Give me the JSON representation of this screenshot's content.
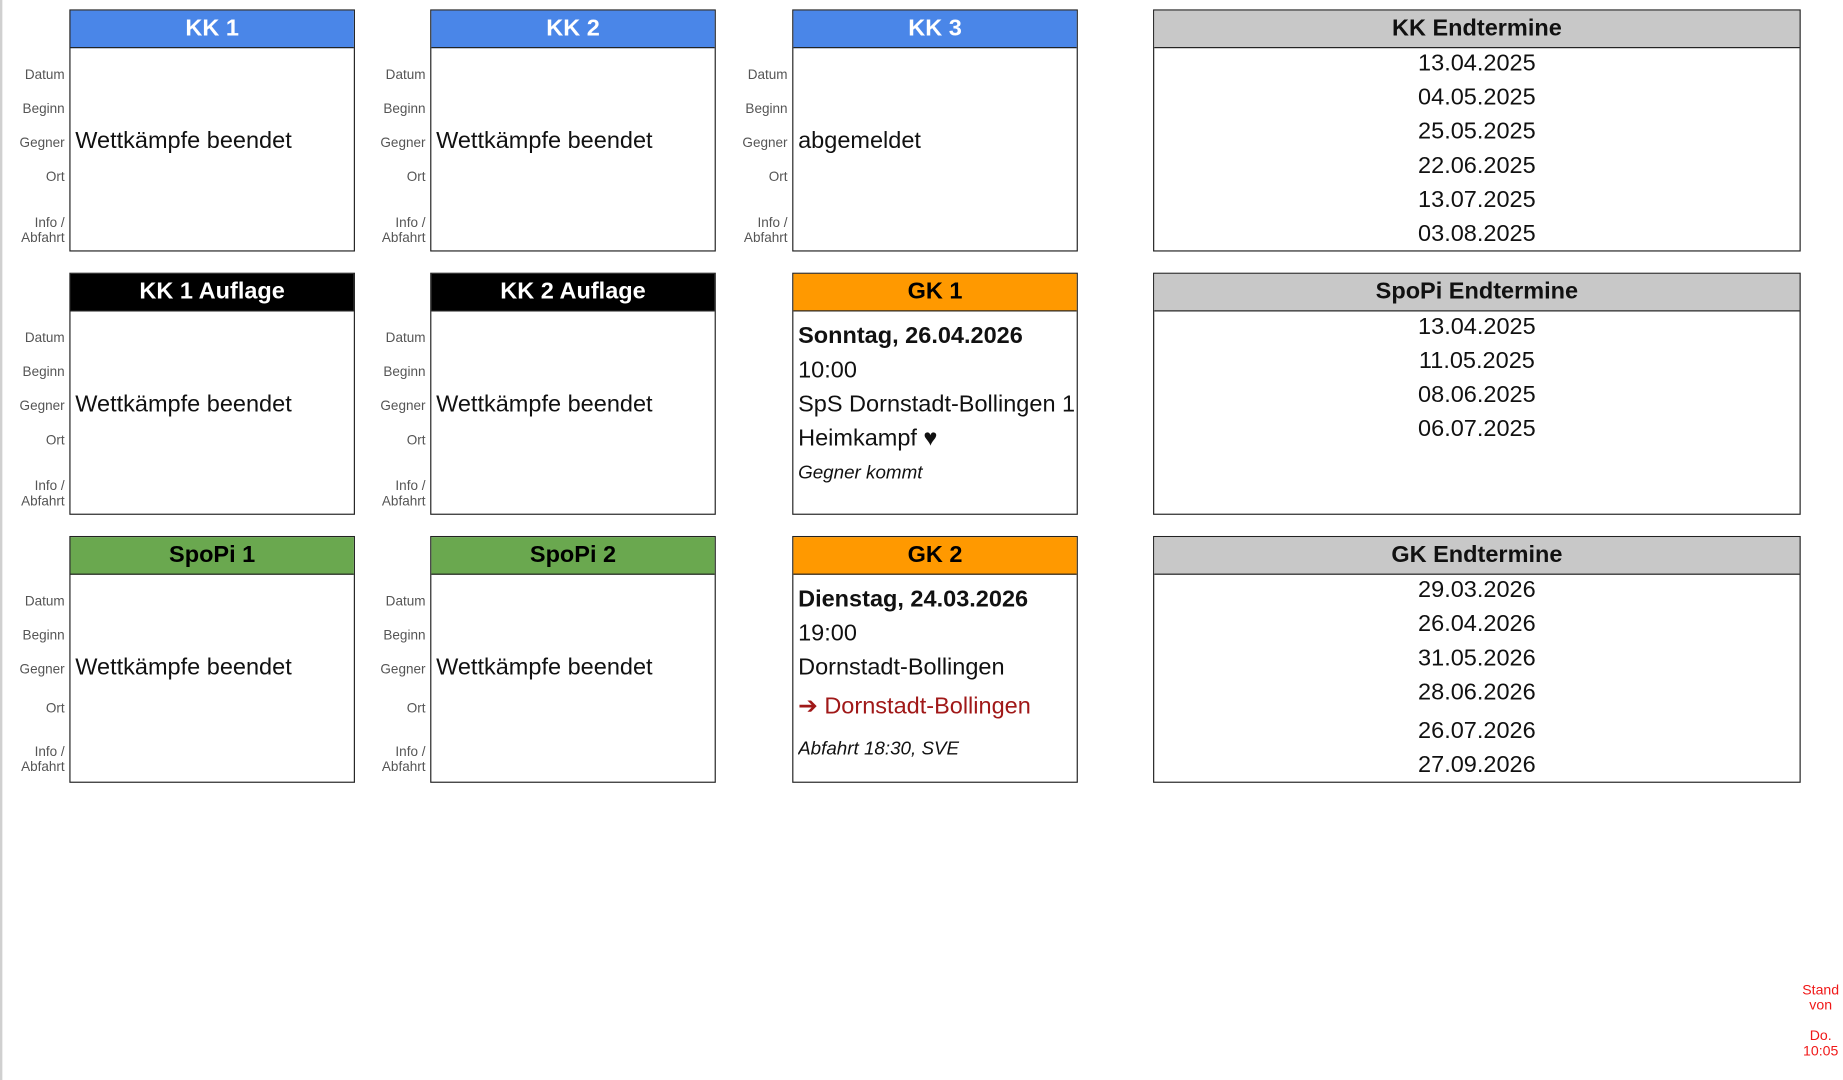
{
  "labels": {
    "datum": "Datum",
    "beginn": "Beginn",
    "gegner": "Gegner",
    "ort": "Ort",
    "info1": "Info /",
    "info2": "Abfahrt"
  },
  "boxes": [
    {
      "title": "KK 1",
      "header_bg": "#4a86e8",
      "header_fg": "#ffffff",
      "rows": [
        {
          "slot": 2,
          "text": "Wettkämpfe beendet"
        }
      ]
    },
    {
      "title": "KK 2",
      "header_bg": "#4a86e8",
      "header_fg": "#ffffff",
      "rows": [
        {
          "slot": 2,
          "text": "Wettkämpfe beendet"
        }
      ]
    },
    {
      "title": "KK 3",
      "header_bg": "#4a86e8",
      "header_fg": "#ffffff",
      "rows": [
        {
          "slot": 2,
          "text": "abgemeldet"
        }
      ]
    },
    {
      "title": "KK 1 Auflage",
      "header_bg": "#000000",
      "header_fg": "#ffffff",
      "rows": [
        {
          "slot": 2,
          "text": "Wettkämpfe beendet"
        }
      ]
    },
    {
      "title": "KK 2 Auflage",
      "header_bg": "#000000",
      "header_fg": "#ffffff",
      "rows": [
        {
          "slot": 2,
          "text": "Wettkämpfe beendet"
        }
      ]
    },
    {
      "title": "GK 1",
      "header_bg": "#ff9900",
      "header_fg": "#000000",
      "rows": [
        {
          "slot": 0,
          "text": "Sonntag, 26.04.2026",
          "style": "bold"
        },
        {
          "slot": 1,
          "text": "10:00"
        },
        {
          "slot": 2,
          "text": "SpS Dornstadt-Bollingen 1"
        },
        {
          "slot": 3,
          "text": "Heimkampf ♥"
        },
        {
          "slot": 4,
          "text": "Gegner kommt",
          "style": "italic"
        }
      ]
    },
    {
      "title": "SpoPi 1",
      "header_bg": "#6aa84f",
      "header_fg": "#000000",
      "rows": [
        {
          "slot": 2,
          "text": "Wettkämpfe beendet"
        }
      ]
    },
    {
      "title": "SpoPi 2",
      "header_bg": "#6aa84f",
      "header_fg": "#000000",
      "rows": [
        {
          "slot": 2,
          "text": "Wettkämpfe beendet"
        }
      ]
    },
    {
      "title": "GK 2",
      "header_bg": "#ff9900",
      "header_fg": "#000000",
      "rows": [
        {
          "slot": 0,
          "text": "Dienstag, 24.03.2026",
          "style": "bold"
        },
        {
          "slot": 1,
          "text": "19:00"
        },
        {
          "slot": 2,
          "text": "Dornstadt-Bollingen"
        },
        {
          "slot": 3,
          "text": "➔ Dornstadt-Bollingen",
          "style": "red"
        },
        {
          "slot": 4,
          "text": "Abfahrt 18:30, SVE",
          "style": "italic"
        }
      ]
    }
  ],
  "endtermine": [
    {
      "title": "KK Endtermine",
      "dates": [
        "13.04.2025",
        "04.05.2025",
        "25.05.2025",
        "22.06.2025",
        "13.07.2025",
        "03.08.2025"
      ]
    },
    {
      "title": "SpoPi Endtermine",
      "dates": [
        "13.04.2025",
        "11.05.2025",
        "08.06.2025",
        "06.07.2025"
      ]
    },
    {
      "title": "GK Endtermine",
      "dates": [
        "29.03.2026",
        "26.04.2026",
        "31.05.2026",
        "28.06.2026",
        "26.07.2026",
        "27.09.2026"
      ]
    }
  ],
  "stand": {
    "line1": "Stand",
    "line2": "von",
    "line3": "Do.",
    "line4": "10:05"
  }
}
